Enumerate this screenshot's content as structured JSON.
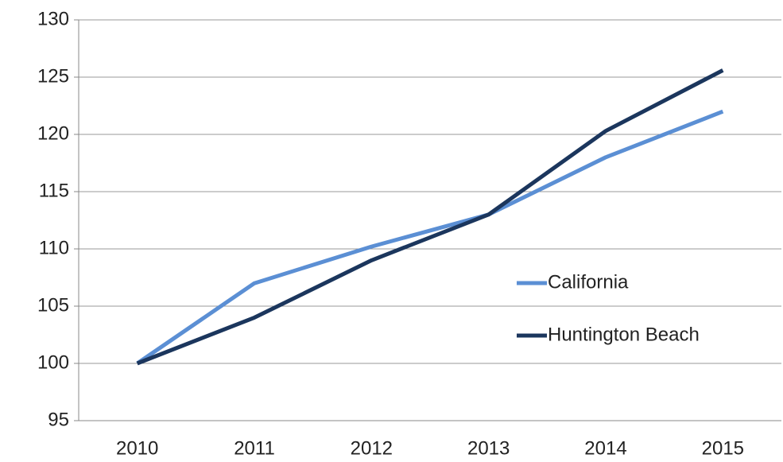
{
  "chart_data": {
    "type": "line",
    "categories": [
      "2010",
      "2011",
      "2012",
      "2013",
      "2014",
      "2015"
    ],
    "series": [
      {
        "name": "California",
        "color": "#5b8fd4",
        "values": [
          100,
          107,
          110.2,
          113,
          118,
          122
        ]
      },
      {
        "name": "Huntington Beach",
        "color": "#1b365d",
        "values": [
          100,
          104,
          109,
          113,
          120.3,
          125.6
        ]
      }
    ],
    "ylim": [
      95,
      130
    ],
    "yticks": [
      95,
      100,
      105,
      110,
      115,
      120,
      125,
      130
    ],
    "grid": true,
    "legend": "right"
  }
}
